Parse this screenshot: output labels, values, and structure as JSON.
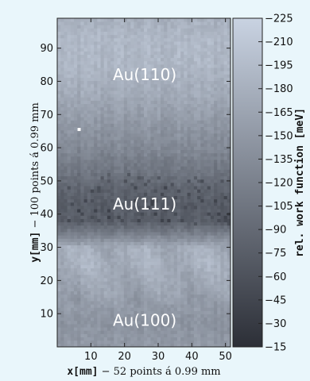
{
  "chart_data": {
    "type": "heatmap",
    "title": "",
    "xlabel": {
      "var": "x",
      "unit": "[mm]",
      "rest": " − 52 points á 0.99 mm"
    },
    "ylabel": {
      "var": "y",
      "unit": "[mm]",
      "rest": " − 100 points á 0.99 mm"
    },
    "xlim": [
      0,
      51.5
    ],
    "ylim": [
      0,
      99
    ],
    "x_ticks": [
      10,
      20,
      30,
      40,
      50
    ],
    "y_ticks": [
      10,
      20,
      30,
      40,
      50,
      60,
      70,
      80,
      90
    ],
    "grid": false,
    "colorbar": {
      "label": "rel. work function [meV]",
      "range": [
        15,
        225
      ],
      "ticks": [
        225,
        210,
        195,
        180,
        165,
        150,
        135,
        120,
        105,
        90,
        75,
        60,
        45,
        30,
        15
      ],
      "low_color": "#2c2f37",
      "high_color": "#c9d3e2"
    },
    "annotations": [
      {
        "text": "Au(110)",
        "x": 26,
        "y": 82
      },
      {
        "text": "Au(111)",
        "x": 26,
        "y": 43
      },
      {
        "text": "Au(100)",
        "x": 26,
        "y": 8
      }
    ],
    "marker": {
      "x": 6.5,
      "y": 65.5
    },
    "grid_size": {
      "nx": 52,
      "ny": 100
    },
    "value_profile": [
      {
        "y": 0,
        "value": 150
      },
      {
        "y": 8,
        "value": 142
      },
      {
        "y": 18,
        "value": 165
      },
      {
        "y": 25,
        "value": 178
      },
      {
        "y": 30,
        "value": 175
      },
      {
        "y": 34,
        "value": 118
      },
      {
        "y": 38,
        "value": 75
      },
      {
        "y": 43,
        "value": 72
      },
      {
        "y": 48,
        "value": 85
      },
      {
        "y": 53,
        "value": 105
      },
      {
        "y": 60,
        "value": 130
      },
      {
        "y": 68,
        "value": 150
      },
      {
        "y": 76,
        "value": 172
      },
      {
        "y": 85,
        "value": 188
      },
      {
        "y": 92,
        "value": 190
      },
      {
        "y": 99,
        "value": 180
      }
    ]
  }
}
